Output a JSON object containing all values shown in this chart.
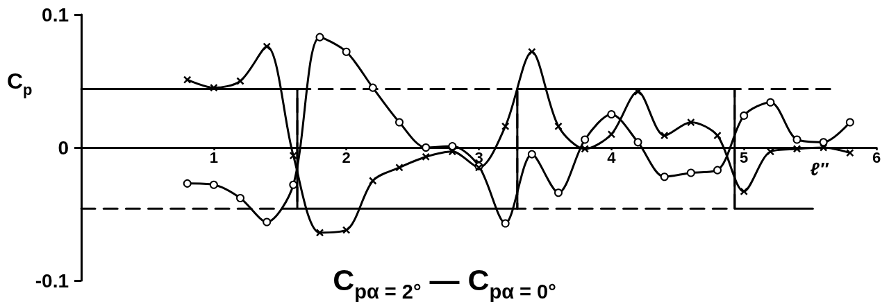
{
  "chart_data": {
    "type": "line",
    "xlabel": "C$_{pα = 2°}$ — C$_{pα = 0°}$",
    "ylabel": "C$_{p}$",
    "xlim": [
      0,
      6
    ],
    "xticks": [
      1,
      2,
      3,
      4,
      5,
      6
    ],
    "ylim": [
      -0.1,
      0.1
    ],
    "yticks": [
      -0.1,
      0,
      0.1
    ],
    "annotations": [
      "ℓ″"
    ],
    "x": [
      0.8,
      1,
      1.2,
      1.4,
      1.6,
      1.8,
      2,
      2.2,
      2.4,
      2.6,
      2.8,
      3,
      3.2,
      3.4,
      3.6,
      3.8,
      4,
      4.2,
      4.4,
      4.6,
      4.8,
      5,
      5.2,
      5.4,
      5.6,
      5.8
    ],
    "series": [
      {
        "type": "step",
        "color": "#000000",
        "line_style": "solid",
        "marker": "none",
        "x": [
          0,
          1.63,
          3.29,
          4.93,
          5.52
        ],
        "values": [
          0.044,
          -0.046,
          0.044,
          -0.046,
          -0.046
        ]
      },
      {
        "type": "step",
        "color": "#000000",
        "line_style": "dashed",
        "marker": "none",
        "x": [
          0,
          1.63,
          3.29,
          4.93,
          5.65
        ],
        "values": [
          -0.046,
          0.044,
          -0.046,
          0.044,
          0.044
        ]
      },
      {
        "color": "#000000",
        "line_style": "solid",
        "marker": "circle",
        "values": [
          -0.027,
          -0.028,
          -0.038,
          -0.056,
          -0.028,
          0.083,
          0.072,
          0.045,
          0.019,
          0,
          0.001,
          -0.014,
          -0.057,
          -0.005,
          -0.034,
          0.006,
          0.025,
          0.004,
          -0.022,
          -0.019,
          -0.017,
          0.024,
          0.034,
          0.006,
          0.004,
          0.019
        ]
      },
      {
        "color": "#000000",
        "line_style": "solid",
        "marker": "cross",
        "values": [
          0.051,
          0.045,
          0.05,
          0.076,
          -0.006,
          -0.064,
          -0.062,
          -0.025,
          -0.015,
          -0.007,
          -0.003,
          -0.015,
          0.016,
          0.072,
          0.016,
          -0.001,
          0.01,
          0.042,
          0.009,
          0.019,
          0.009,
          -0.033,
          -0.003,
          -0.001,
          0,
          -0.004
        ]
      }
    ]
  }
}
